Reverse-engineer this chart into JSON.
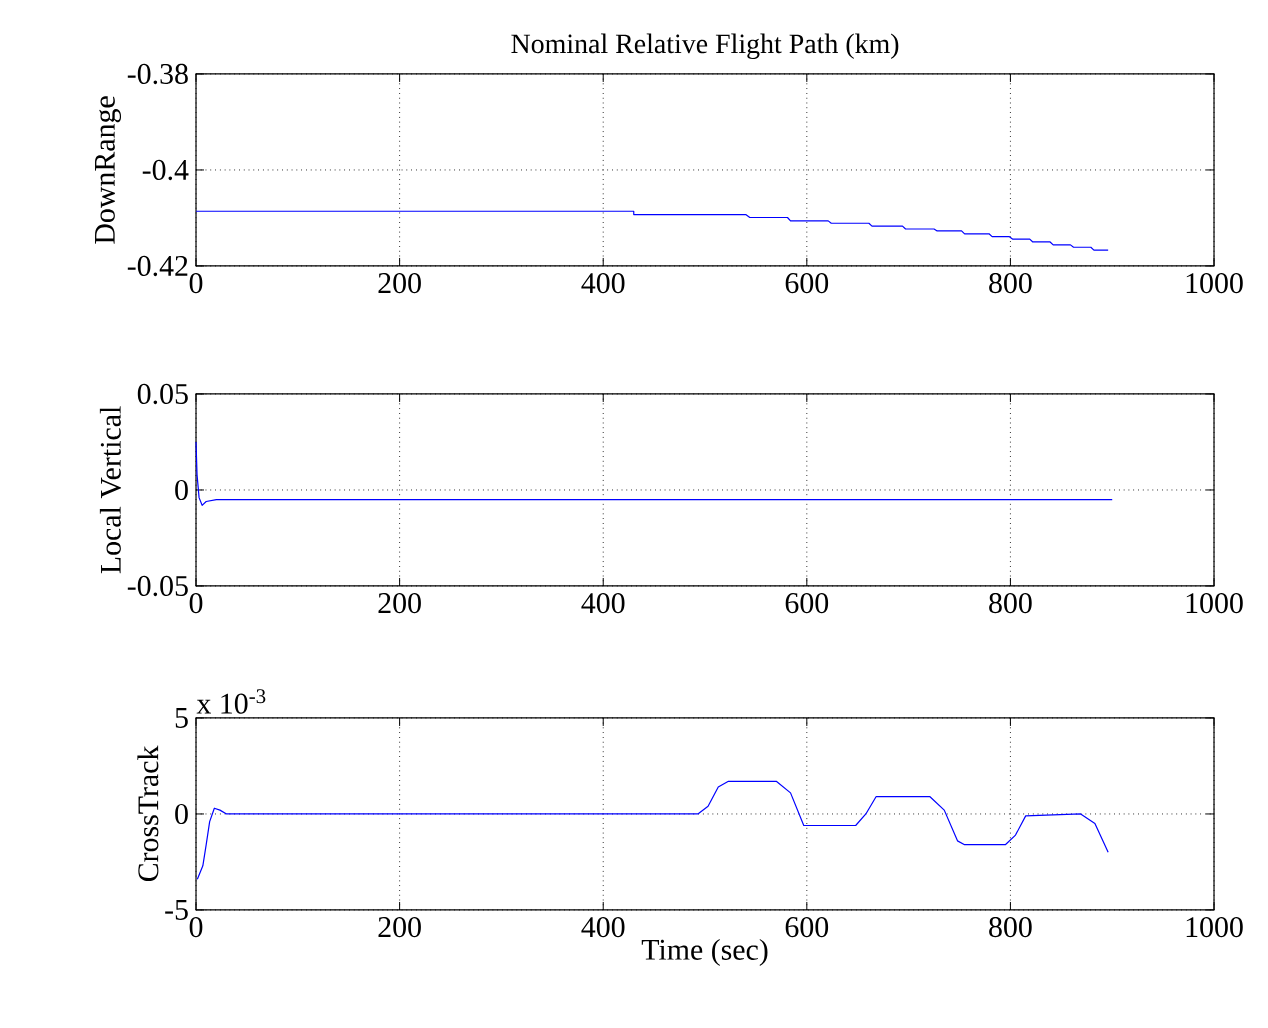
{
  "chart_data": [
    {
      "type": "line",
      "title": "Nominal Relative Flight Path (km)",
      "ylabel": "DownRange",
      "xlim": [
        0,
        1000
      ],
      "xticks": [
        0,
        200,
        400,
        600,
        800,
        1000
      ],
      "ylim": [
        -0.42,
        -0.38
      ],
      "yticks": [
        -0.42,
        -0.4,
        -0.38
      ],
      "grid": true,
      "series": [
        {
          "color": "#0000ff",
          "x": [
            0,
            430,
            430,
            540,
            544,
            581,
            584,
            621,
            624,
            661,
            664,
            694,
            697,
            725,
            728,
            752,
            755,
            779,
            782,
            799,
            802,
            819,
            822,
            839,
            842,
            859,
            862,
            879,
            882,
            896
          ],
          "values": [
            -0.4086,
            -0.4086,
            -0.4093,
            -0.4093,
            -0.4099,
            -0.4099,
            -0.4106,
            -0.4106,
            -0.4111,
            -0.4111,
            -0.4117,
            -0.4117,
            -0.4123,
            -0.4123,
            -0.4127,
            -0.4127,
            -0.4133,
            -0.4133,
            -0.4139,
            -0.4139,
            -0.4144,
            -0.4144,
            -0.415,
            -0.415,
            -0.4156,
            -0.4156,
            -0.4161,
            -0.4161,
            -0.4167,
            -0.4167
          ]
        }
      ]
    },
    {
      "type": "line",
      "ylabel": "Local Vertical",
      "xlim": [
        0,
        1000
      ],
      "xticks": [
        0,
        200,
        400,
        600,
        800,
        1000
      ],
      "ylim": [
        -0.05,
        0.05
      ],
      "yticks": [
        -0.05,
        0,
        0.05
      ],
      "grid": true,
      "series": [
        {
          "color": "#0000ff",
          "x": [
            0,
            1,
            3,
            6,
            10,
            20,
            900
          ],
          "values": [
            0.025,
            0.008,
            -0.004,
            -0.008,
            -0.006,
            -0.005,
            -0.005
          ]
        }
      ]
    },
    {
      "type": "line",
      "ylabel": "CrossTrack",
      "xlabel": "Time (sec)",
      "annotations": [
        "x 10$^{-3}$"
      ],
      "xlim": [
        0,
        1000
      ],
      "xticks": [
        0,
        200,
        400,
        600,
        800,
        1000
      ],
      "ylim": [
        -5,
        5
      ],
      "yticks": [
        -5,
        0,
        5
      ],
      "grid": true,
      "series": [
        {
          "color": "#0000ff",
          "x": [
            1.3,
            6.7,
            10,
            13.4,
            18,
            23.5,
            30,
            493,
            503,
            513,
            523,
            570,
            584,
            597,
            648,
            658,
            668,
            721,
            735,
            748,
            755,
            795,
            805,
            815,
            869,
            883,
            896
          ],
          "values": [
            -3.4,
            -2.7,
            -1.6,
            -0.4,
            0.3,
            0.2,
            0,
            0,
            0.4,
            1.4,
            1.7,
            1.7,
            1.1,
            -0.6,
            -0.6,
            0,
            0.9,
            0.9,
            0.2,
            -1.4,
            -1.6,
            -1.6,
            -1.1,
            -0.1,
            0,
            -0.5,
            -2
          ]
        }
      ]
    }
  ]
}
